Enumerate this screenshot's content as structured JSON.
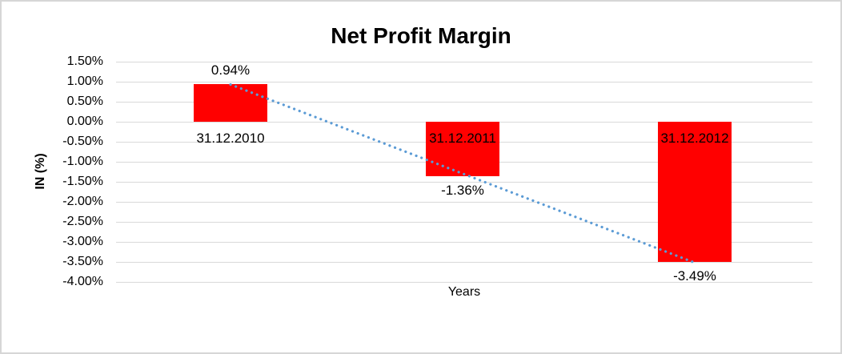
{
  "chart_data": {
    "type": "bar",
    "title": "Net Profit Margin",
    "xlabel": "Years",
    "ylabel": "IN (%)",
    "categories": [
      "31.12.2010",
      "31.12.2011",
      "31.12.2012"
    ],
    "values": [
      0.94,
      -1.36,
      -3.49
    ],
    "data_labels": [
      "0.94%",
      "-1.36%",
      "-3.49%"
    ],
    "ylim": [
      -4.0,
      1.5
    ],
    "ytick_step": 0.5,
    "ytick_labels": [
      "1.50%",
      "1.00%",
      "0.50%",
      "0.00%",
      "-0.50%",
      "-1.00%",
      "-1.50%",
      "-2.00%",
      "-2.50%",
      "-3.00%",
      "-3.50%",
      "-4.00%"
    ],
    "ytick_values": [
      1.5,
      1.0,
      0.5,
      0.0,
      -0.5,
      -1.0,
      -1.5,
      -2.0,
      -2.5,
      -3.0,
      -3.5,
      -4.0
    ],
    "grid": true,
    "legend": "none",
    "bar_color": "#ff0000",
    "gridline_color": "#d9d9d9",
    "frame_border_color": "#d6d6d6",
    "trendline": {
      "style": "dotted",
      "color": "#5b9bd5",
      "start_value": 0.93,
      "end_value": -3.52
    }
  }
}
